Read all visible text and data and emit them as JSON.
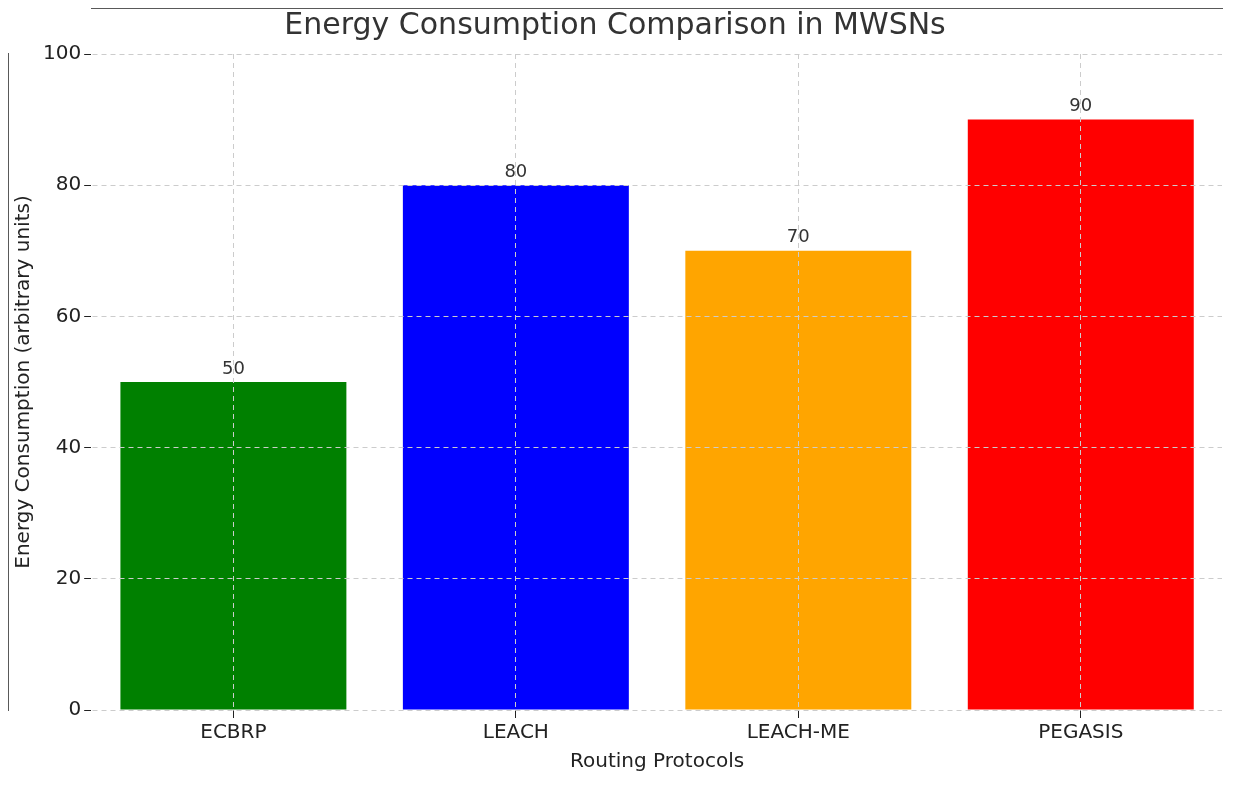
{
  "chart_data": {
    "type": "bar",
    "title": "Energy Consumption Comparison in MWSNs",
    "xlabel": "Routing Protocols",
    "ylabel": "Energy Consumption (arbitrary units)",
    "categories": [
      "ECBRP",
      "LEACH",
      "LEACH-ME",
      "PEGASIS"
    ],
    "values": [
      50,
      80,
      70,
      90
    ],
    "colors": [
      "#008000",
      "#0000ff",
      "#ffa500",
      "#ff0000"
    ],
    "ylim": [
      0,
      100
    ],
    "yticks": [
      0,
      20,
      40,
      60,
      80,
      100
    ],
    "grid": true,
    "data_labels": true,
    "legend": false
  }
}
